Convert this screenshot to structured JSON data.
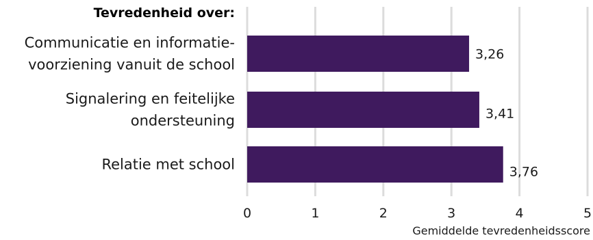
{
  "chart_data": {
    "type": "bar",
    "orientation": "horizontal",
    "category_heading": "Tevredenheid over:",
    "categories": [
      [
        "Communicatie en informatie-",
        "voorziening vanuit de school"
      ],
      [
        "Signalering en feitelijke",
        "ondersteuning"
      ],
      [
        "Relatie met school"
      ]
    ],
    "values": [
      3.26,
      3.41,
      3.76
    ],
    "data_labels": [
      "3,26",
      "3,41",
      "3,76"
    ],
    "xlabel": "Gemiddelde tevredenheidsscore",
    "xlim": [
      0,
      5
    ],
    "x_ticks": [
      0,
      1,
      2,
      3,
      4,
      5
    ],
    "x_tick_labels": [
      "0",
      "1",
      "2",
      "3",
      "4",
      "5"
    ],
    "grid": true,
    "colors": {
      "bar": "#3f1a5e",
      "grid": "#dcdcdc"
    }
  }
}
